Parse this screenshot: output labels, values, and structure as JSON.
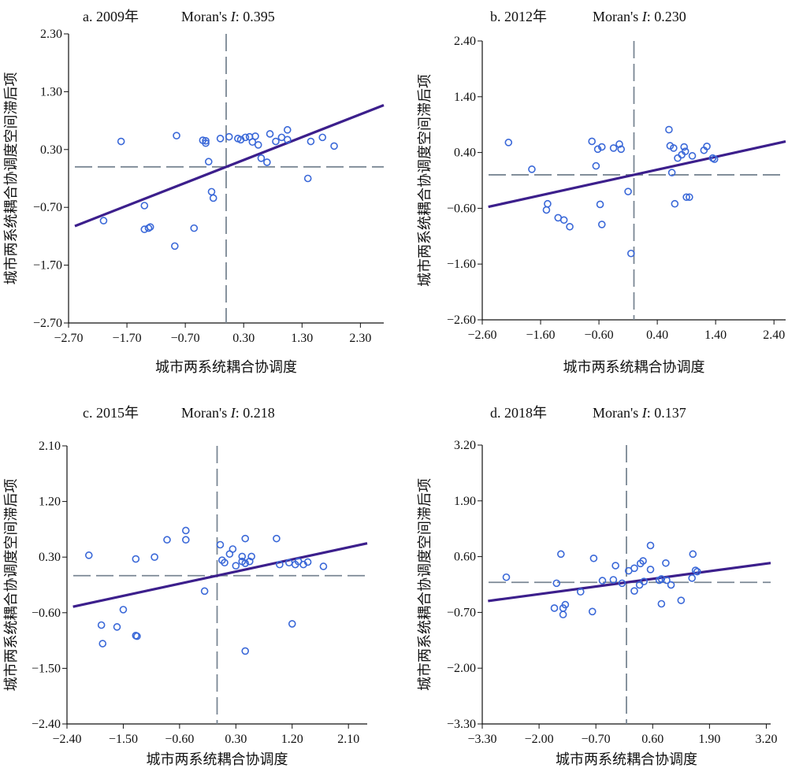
{
  "chart_data": [
    {
      "type": "scatter",
      "panel_label": "a. 2009年",
      "moran_label": "Moran's ",
      "moran_symbol": "I",
      "moran_value": ": 0.395",
      "xlabel": "城市两系统耦合协调度",
      "ylabel": "城市两系统耦合协调度空间滞后项",
      "x_ticks": [
        "−2.70",
        "−1.70",
        "−0.70",
        "0.30",
        "1.30",
        "2.30"
      ],
      "y_ticks": [
        "2.30",
        "1.30",
        "0.30",
        "−0.70",
        "−1.70",
        "−2.70"
      ],
      "xlim": [
        -2.7,
        2.7
      ],
      "ylim": [
        -2.7,
        2.3
      ],
      "x_mean": 0.0,
      "y_mean": 0.0,
      "regression_slope": 0.395,
      "points": [
        [
          -2.1,
          -0.93
        ],
        [
          -1.8,
          0.44
        ],
        [
          -1.4,
          -0.67
        ],
        [
          -1.4,
          -1.08
        ],
        [
          -1.33,
          -1.06
        ],
        [
          -1.3,
          -1.04
        ],
        [
          -0.85,
          0.54
        ],
        [
          -0.88,
          -1.37
        ],
        [
          -0.55,
          -1.06
        ],
        [
          -0.4,
          0.46
        ],
        [
          -0.35,
          0.45
        ],
        [
          -0.35,
          0.41
        ],
        [
          -0.3,
          0.09
        ],
        [
          -0.25,
          -0.43
        ],
        [
          -0.22,
          -0.54
        ],
        [
          -0.1,
          0.49
        ],
        [
          0.05,
          0.52
        ],
        [
          0.2,
          0.49
        ],
        [
          0.25,
          0.47
        ],
        [
          0.33,
          0.51
        ],
        [
          0.4,
          0.52
        ],
        [
          0.45,
          0.43
        ],
        [
          0.5,
          0.53
        ],
        [
          0.55,
          0.38
        ],
        [
          0.6,
          0.15
        ],
        [
          0.7,
          0.08
        ],
        [
          0.75,
          0.57
        ],
        [
          0.85,
          0.44
        ],
        [
          0.95,
          0.51
        ],
        [
          1.05,
          0.64
        ],
        [
          1.05,
          0.47
        ],
        [
          1.4,
          -0.2
        ],
        [
          1.45,
          0.44
        ],
        [
          1.65,
          0.51
        ],
        [
          1.85,
          0.36
        ]
      ]
    },
    {
      "type": "scatter",
      "panel_label": "b. 2012年",
      "moran_label": "Moran's ",
      "moran_symbol": "I",
      "moran_value": ": 0.230",
      "xlabel": "城市两系统耦合协调度",
      "ylabel": "城市两系统耦合协调度空间滞后项",
      "x_ticks": [
        "−2.60",
        "−1.60",
        "−0.60",
        "0.40",
        "1.40",
        "2.40"
      ],
      "y_ticks": [
        "2.40",
        "1.40",
        "0.40",
        "−0.60",
        "−1.60",
        "−2.60"
      ],
      "xlim": [
        -2.6,
        2.6
      ],
      "ylim": [
        -2.6,
        2.4
      ],
      "x_mean": 0.0,
      "y_mean": 0.0,
      "regression_slope": 0.23,
      "points": [
        [
          -2.15,
          0.58
        ],
        [
          -1.75,
          0.1
        ],
        [
          -1.5,
          -0.63
        ],
        [
          -1.48,
          -0.52
        ],
        [
          -1.3,
          -0.77
        ],
        [
          -1.2,
          -0.81
        ],
        [
          -1.1,
          -0.93
        ],
        [
          -0.72,
          0.6
        ],
        [
          -0.65,
          0.16
        ],
        [
          -0.62,
          0.46
        ],
        [
          -0.58,
          -0.53
        ],
        [
          -0.55,
          -0.89
        ],
        [
          -0.55,
          0.5
        ],
        [
          -0.35,
          0.48
        ],
        [
          -0.25,
          0.55
        ],
        [
          -0.22,
          0.46
        ],
        [
          -0.1,
          -0.3
        ],
        [
          -0.05,
          -1.41
        ],
        [
          0.6,
          0.81
        ],
        [
          0.62,
          0.52
        ],
        [
          0.68,
          0.48
        ],
        [
          0.75,
          0.3
        ],
        [
          0.82,
          0.36
        ],
        [
          0.86,
          0.5
        ],
        [
          0.88,
          0.42
        ],
        [
          0.9,
          -0.4
        ],
        [
          0.95,
          -0.4
        ],
        [
          1.0,
          0.34
        ],
        [
          1.2,
          0.44
        ],
        [
          1.25,
          0.51
        ],
        [
          1.35,
          0.3
        ],
        [
          1.38,
          0.28
        ],
        [
          0.7,
          -0.52
        ],
        [
          0.65,
          0.04
        ]
      ]
    },
    {
      "type": "scatter",
      "panel_label": "c. 2015年",
      "moran_label": "Moran's ",
      "moran_symbol": "I",
      "moran_value": ": 0.218",
      "xlabel": "城市两系统耦合协调度",
      "ylabel": "城市两系统耦合协调度空间滞后项",
      "x_ticks": [
        "−2.40",
        "−1.50",
        "−0.60",
        "0.30",
        "1.20",
        "2.10"
      ],
      "y_ticks": [
        "2.10",
        "1.20",
        "0.30",
        "−0.60",
        "−1.50",
        "−2.40"
      ],
      "xlim": [
        -2.4,
        2.4
      ],
      "ylim": [
        -2.4,
        2.1
      ],
      "x_mean": 0.0,
      "y_mean": 0.0,
      "regression_slope": 0.218,
      "points": [
        [
          -2.05,
          0.33
        ],
        [
          -1.85,
          -0.8
        ],
        [
          -1.83,
          -1.1
        ],
        [
          -1.6,
          -0.83
        ],
        [
          -1.5,
          -0.55
        ],
        [
          -1.3,
          -0.97
        ],
        [
          -1.28,
          -0.98
        ],
        [
          -1.3,
          0.27
        ],
        [
          -1.0,
          0.3
        ],
        [
          -0.8,
          0.58
        ],
        [
          -0.5,
          0.58
        ],
        [
          -0.5,
          0.73
        ],
        [
          -0.2,
          -0.25
        ],
        [
          0.05,
          0.5
        ],
        [
          0.08,
          0.25
        ],
        [
          0.12,
          0.21
        ],
        [
          0.2,
          0.35
        ],
        [
          0.25,
          0.43
        ],
        [
          0.3,
          0.16
        ],
        [
          0.4,
          0.23
        ],
        [
          0.45,
          0.2
        ],
        [
          0.4,
          0.31
        ],
        [
          0.45,
          0.6
        ],
        [
          0.52,
          0.23
        ],
        [
          0.55,
          0.31
        ],
        [
          0.45,
          -1.22
        ],
        [
          0.95,
          0.6
        ],
        [
          1.0,
          0.18
        ],
        [
          1.15,
          0.21
        ],
        [
          1.2,
          -0.78
        ],
        [
          1.25,
          0.18
        ],
        [
          1.3,
          0.23
        ],
        [
          1.38,
          0.18
        ],
        [
          1.45,
          0.22
        ],
        [
          1.7,
          0.15
        ]
      ]
    },
    {
      "type": "scatter",
      "panel_label": "d. 2018年",
      "moran_label": "Moran's ",
      "moran_symbol": "I",
      "moran_value": ": 0.137",
      "xlabel": "城市两系统耦合协调度",
      "ylabel": "城市两系统耦合协调度空间滞后项",
      "x_ticks": [
        "−3.30",
        "−2.00",
        "−0.70",
        "0.60",
        "1.90",
        "3.20"
      ],
      "y_ticks": [
        "3.20",
        "1.90",
        "0.60",
        "−0.70",
        "−2.00",
        "−3.30"
      ],
      "xlim": [
        -3.3,
        3.3
      ],
      "ylim": [
        -3.3,
        3.2
      ],
      "x_mean": 0.0,
      "y_mean": 0.0,
      "regression_slope": 0.137,
      "points": [
        [
          -2.75,
          0.12
        ],
        [
          -1.6,
          -0.02
        ],
        [
          -1.65,
          -0.6
        ],
        [
          -1.45,
          -0.6
        ],
        [
          -1.4,
          -0.52
        ],
        [
          -1.45,
          -0.75
        ],
        [
          -1.5,
          0.66
        ],
        [
          -1.05,
          -0.22
        ],
        [
          -0.75,
          0.56
        ],
        [
          -0.78,
          -0.68
        ],
        [
          -0.55,
          0.04
        ],
        [
          -0.3,
          0.06
        ],
        [
          -0.25,
          0.39
        ],
        [
          -0.1,
          -0.02
        ],
        [
          0.05,
          0.27
        ],
        [
          0.18,
          0.33
        ],
        [
          0.18,
          -0.2
        ],
        [
          0.3,
          -0.06
        ],
        [
          0.32,
          0.44
        ],
        [
          0.38,
          0.5
        ],
        [
          0.4,
          0.02
        ],
        [
          0.55,
          0.3
        ],
        [
          0.75,
          0.05
        ],
        [
          0.8,
          0.08
        ],
        [
          0.8,
          -0.5
        ],
        [
          0.9,
          0.45
        ],
        [
          0.92,
          0.05
        ],
        [
          1.02,
          -0.06
        ],
        [
          1.25,
          -0.42
        ],
        [
          1.52,
          0.66
        ],
        [
          1.58,
          0.28
        ],
        [
          1.5,
          0.1
        ],
        [
          1.62,
          0.25
        ],
        [
          0.55,
          0.86
        ]
      ]
    }
  ]
}
